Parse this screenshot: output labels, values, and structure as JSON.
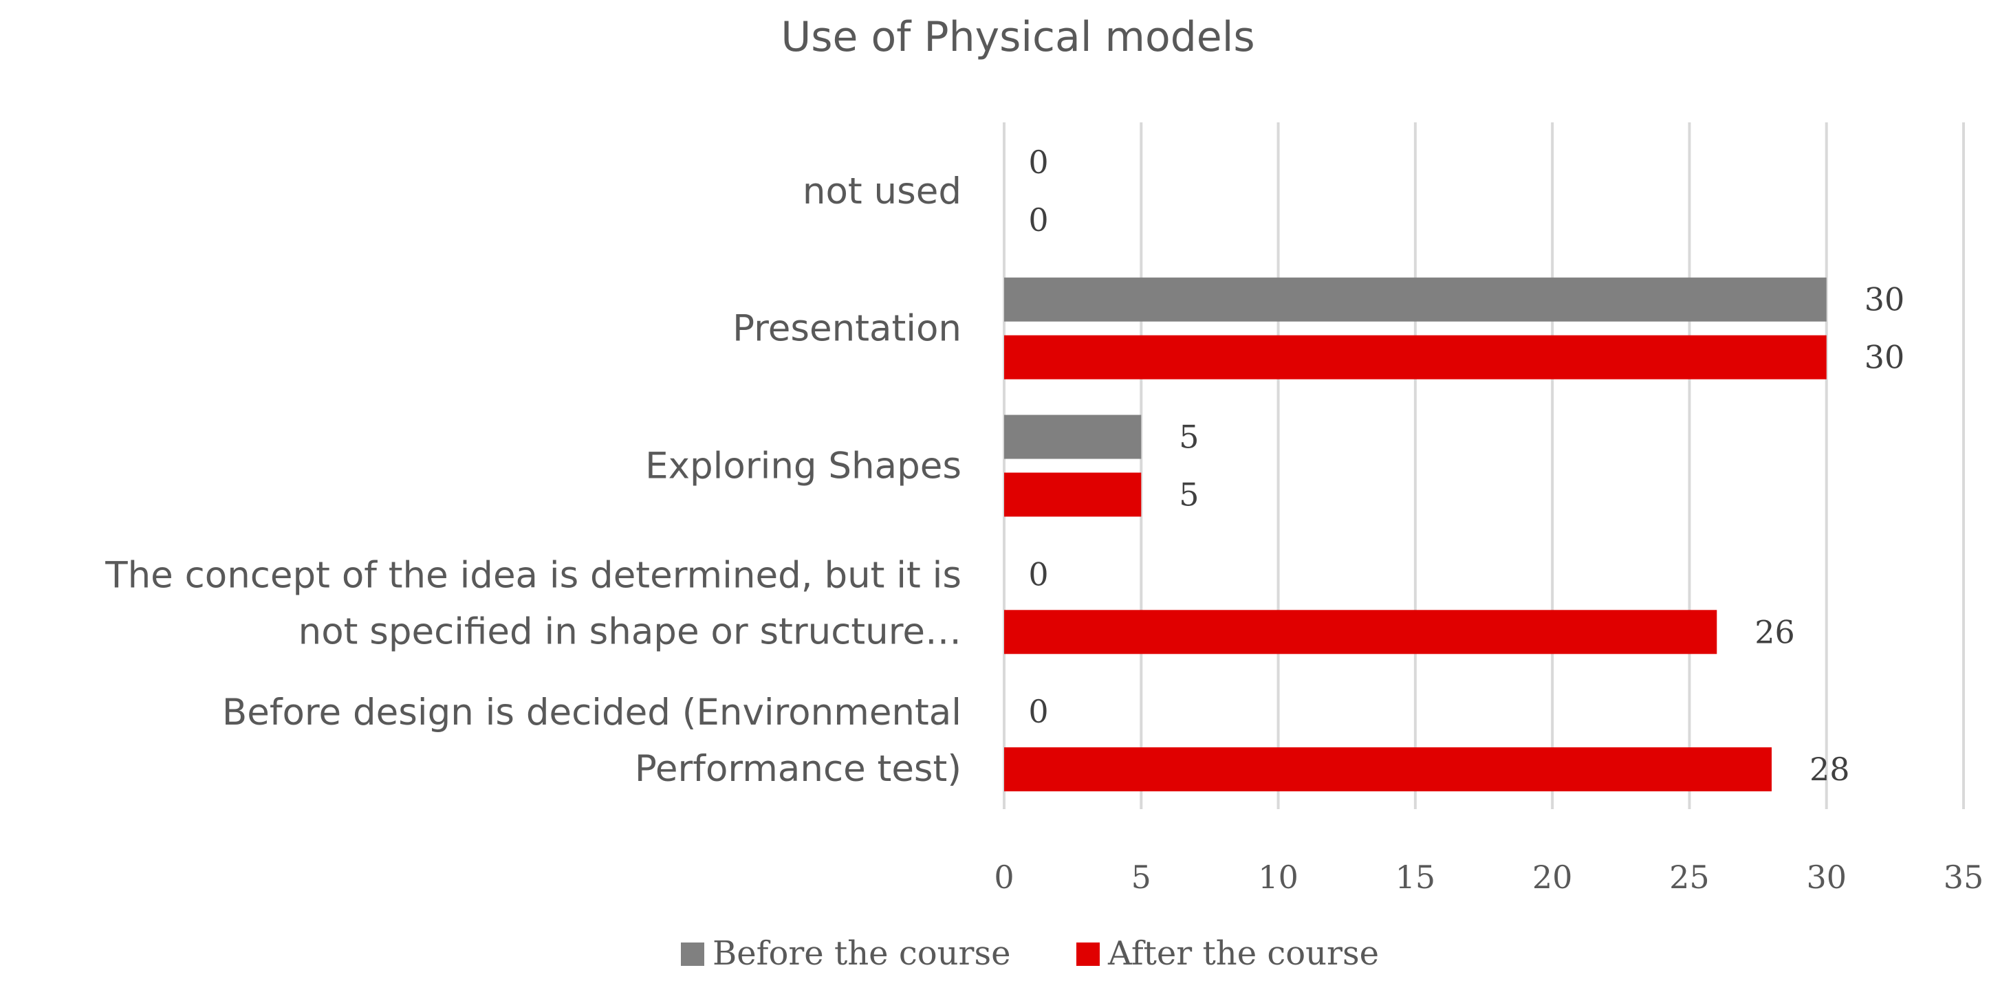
{
  "chart_data": {
    "type": "bar",
    "orientation": "horizontal",
    "title": "Use of Physical models",
    "categories": [
      [
        "not used"
      ],
      [
        "Presentation"
      ],
      [
        "Exploring Shapes"
      ],
      [
        "The concept of the idea is determined, but it is",
        "not specified in shape or structure…"
      ],
      [
        "Before design is decided (Environmental",
        "Performance test)"
      ]
    ],
    "series": [
      {
        "name": "Before the course",
        "color": "#808080",
        "values": [
          0,
          30,
          5,
          0,
          0
        ]
      },
      {
        "name": "After the course",
        "color": "#e00000",
        "values": [
          0,
          30,
          5,
          26,
          28
        ]
      }
    ],
    "xlim": [
      0,
      35
    ],
    "xticks": [
      0,
      5,
      10,
      15,
      20,
      25,
      30,
      35
    ],
    "grid": true,
    "legend_position": "bottom",
    "data_labels": true
  }
}
